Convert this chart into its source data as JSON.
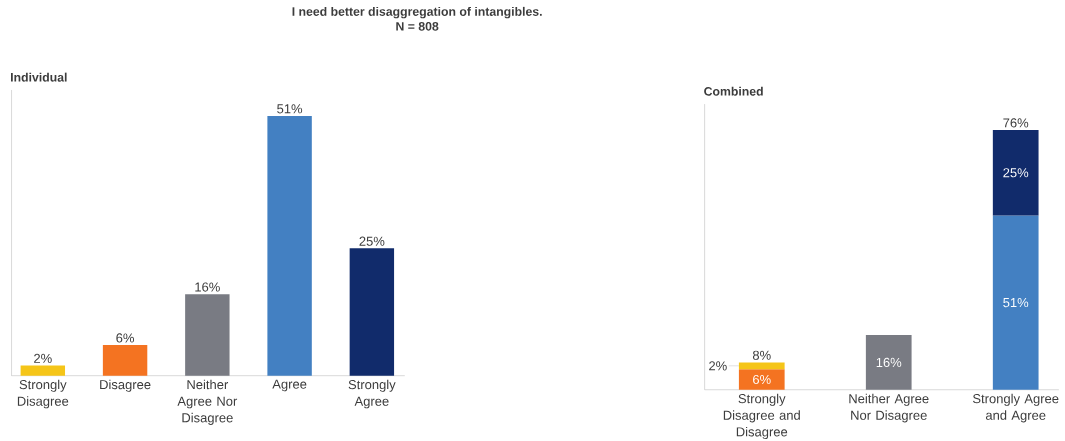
{
  "chart_data": [
    {
      "type": "other",
      "title": "I need better disaggregation of intangibles.",
      "subtitle": "N = 808"
    },
    {
      "type": "bar",
      "title": "Individual",
      "categories": [
        "Strongly Disagree",
        "Disagree",
        "Neither Agree Nor Disagree",
        "Agree",
        "Strongly Agree"
      ],
      "values": [
        2,
        6,
        16,
        51,
        25
      ],
      "colors": [
        "#f5c518",
        "#f47321",
        "#797b83",
        "#4380c2",
        "#112b6b"
      ],
      "value_labels": [
        "2%",
        "6%",
        "16%",
        "51%",
        "25%"
      ]
    },
    {
      "type": "bar",
      "title": "Combined",
      "stacked": true,
      "categories": [
        "Strongly Disagree and Disagree",
        "Neither Agree Nor Disagree",
        "Strongly Agree and Agree"
      ],
      "series": [
        {
          "values": [
            6,
            16,
            51
          ],
          "colors": [
            "#f47321",
            "#797b83",
            "#4380c2"
          ],
          "value_labels": [
            "6%",
            "16%",
            "51%"
          ]
        },
        {
          "values": [
            2,
            null,
            25
          ],
          "colors": [
            "#f5c518",
            null,
            "#112b6b"
          ],
          "value_labels": [
            "2%",
            null,
            "25%"
          ]
        }
      ],
      "totals": [
        "8%",
        null,
        "76%"
      ]
    }
  ]
}
